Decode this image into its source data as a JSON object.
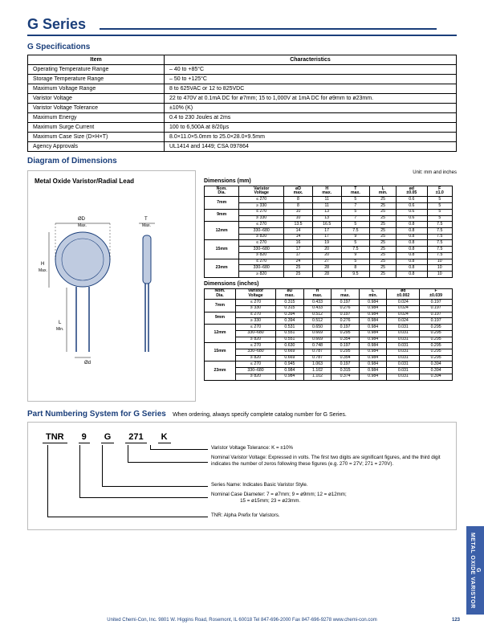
{
  "page_title": "G Series",
  "sections": {
    "spec_h": "G Specifications",
    "diag_h": "Diagram of Dimensions",
    "pn_h": "Part Numbering System for G Series",
    "pn_sub": "When ordering, always specify complete catalog number for G Series."
  },
  "spec_table": {
    "headers": [
      "Item",
      "Characteristics"
    ],
    "rows": [
      [
        "Operating Temperature Range",
        "– 40 to +85°C"
      ],
      [
        "Storage Temperature Range",
        "– 50 to +125°C"
      ],
      [
        "Maximum Voltage Range",
        "8 to 625VAC or 12 to 825VDC"
      ],
      [
        "Varistor Voltage",
        "22 to 470V at 0.1mA DC for ø7mm; 15 to 1,000V at 1mA DC for ø9mm to ø23mm."
      ],
      [
        "Varistor Voltage Tolerance",
        "±10% (K)"
      ],
      [
        "Maximum Energy",
        "0.4 to 230 Joules at 2ms"
      ],
      [
        "Maximum Surge Current",
        "100 to 6,500A at 8/20µs"
      ],
      [
        "Maximum Case Size (D×H×T)",
        "8.0×11.0×5.0mm to 25.0×28.0×9.5mm"
      ],
      [
        "Agency Approvals",
        "UL1414 and 1449; CSA 097864"
      ]
    ]
  },
  "diagram": {
    "box_title": "Metal Oxide Varistor/Radial Lead",
    "unit_note": "Unit: mm and inches",
    "dim_mm_title": "Dimensions (mm)",
    "dim_in_title": "Dimensions (inches)",
    "dim_headers": [
      "Nom.\nDia.",
      "Varistor\nVoltage",
      "øD\nmax.",
      "H\nmax.",
      "T\nmax.",
      "L\nmin.",
      "ød\n±0.05",
      "F\n±1.0"
    ],
    "dim_headers_in": [
      "Nom.\nDia.",
      "Varistor\nVoltage",
      "øD\nmax.",
      "H\nmax.",
      "T\nmax.",
      "L\nmin.",
      "ød\n±0.002",
      "F\n±0.039"
    ],
    "dim_mm_rows": [
      [
        "7mm",
        "≤ 270",
        "8",
        "11",
        "5",
        "25",
        "0.6",
        "5"
      ],
      [
        "",
        "≥ 330",
        "8",
        "11",
        "7",
        "25",
        "0.6",
        "5"
      ],
      [
        "9mm",
        "≤ 270",
        "10",
        "13",
        "5",
        "25",
        "0.6",
        "5"
      ],
      [
        "",
        "≥ 330",
        "10",
        "13",
        "7",
        "25",
        "0.6",
        "5"
      ],
      [
        "12mm",
        "≤ 270",
        "13.5",
        "16.5",
        "5",
        "25",
        "0.8",
        "7.5"
      ],
      [
        "",
        "330–680",
        "14",
        "17",
        "7.5",
        "25",
        "0.8",
        "7.5"
      ],
      [
        "",
        "≥ 820",
        "14",
        "17",
        "9",
        "25",
        "0.8",
        "7.5"
      ],
      [
        "15mm",
        "≤ 270",
        "16",
        "19",
        "5",
        "25",
        "0.8",
        "7.5"
      ],
      [
        "",
        "330–680",
        "17",
        "20",
        "7.5",
        "25",
        "0.8",
        "7.5"
      ],
      [
        "",
        "≥ 820",
        "17",
        "20",
        "9",
        "25",
        "0.8",
        "7.5"
      ],
      [
        "23mm",
        "≤ 270",
        "24",
        "27",
        "5",
        "25",
        "0.8",
        "10"
      ],
      [
        "",
        "330–680",
        "25",
        "28",
        "8",
        "25",
        "0.8",
        "10"
      ],
      [
        "",
        "≥ 820",
        "25",
        "28",
        "9.5",
        "25",
        "0.8",
        "10"
      ]
    ],
    "dim_in_rows": [
      [
        "7mm",
        "≤ 270",
        "0.315",
        "0.433",
        "0.197",
        "0.984",
        "0.024",
        "0.197"
      ],
      [
        "",
        "≥ 330",
        "0.315",
        "0.433",
        "0.276",
        "0.984",
        "0.024",
        "0.197"
      ],
      [
        "9mm",
        "≤ 270",
        "0.394",
        "0.512",
        "0.197",
        "0.984",
        "0.024",
        "0.197"
      ],
      [
        "",
        "≥ 330",
        "0.394",
        "0.512",
        "0.276",
        "0.984",
        "0.024",
        "0.197"
      ],
      [
        "12mm",
        "≤ 270",
        "0.531",
        "0.650",
        "0.197",
        "0.984",
        "0.031",
        "0.295"
      ],
      [
        "",
        "330–680",
        "0.551",
        "0.669",
        "0.295",
        "0.984",
        "0.031",
        "0.295"
      ],
      [
        "",
        "≥ 820",
        "0.551",
        "0.669",
        "0.354",
        "0.984",
        "0.031",
        "0.295"
      ],
      [
        "15mm",
        "≤ 270",
        "0.630",
        "0.748",
        "0.197",
        "0.984",
        "0.031",
        "0.295"
      ],
      [
        "",
        "330–680",
        "0.669",
        "0.787",
        "0.295",
        "0.984",
        "0.031",
        "0.295"
      ],
      [
        "",
        "≥ 820",
        "0.669",
        "0.787",
        "0.354",
        "0.984",
        "0.031",
        "0.295"
      ],
      [
        "23mm",
        "≤ 270",
        "0.945",
        "1.063",
        "0.197",
        "0.984",
        "0.031",
        "0.394"
      ],
      [
        "",
        "330–680",
        "0.984",
        "1.102",
        "0.315",
        "0.984",
        "0.031",
        "0.394"
      ],
      [
        "",
        "≥ 820",
        "0.984",
        "1.102",
        "0.374",
        "0.984",
        "0.031",
        "0.394"
      ]
    ]
  },
  "part_numbering": {
    "codes": [
      "TNR",
      "9",
      "G",
      "271",
      "K"
    ],
    "lines": [
      "Varistor Voltage Tolerance: K = ±10%",
      "Nominal Varistor Voltage: Expressed in volts. The first two digits are significant figures, and the third digit indicates the number of zeros following these figures (e.g. 270 = 27V; 271 = 270V).",
      "Series Name: Indicates Basic Varistor Style.",
      "Nominal Case Diameter: 7 = ø7mm; 9 = ø9mm; 12 = ø12mm;\n                     15 = ø15mm; 23 = ø23mm.",
      "TNR: Alpha Prefix for Varistors."
    ]
  },
  "sidebar": {
    "line1": "G",
    "line2": "METAL OXIDE VARISTOR"
  },
  "footer": {
    "text": "United Chemi-Con, Inc.  9801 W. Higgins Road, Rosemont, IL 60018  Tel 847-696-2000  Fax 847-696-9278  www.chemi-con.com",
    "pagenum": "123"
  },
  "colors": {
    "brand": "#1a3e7a",
    "sidebar": "#3b5fa8"
  },
  "svg_labels": {
    "od": "ØD",
    "t": "T",
    "h": "H",
    "l": "L",
    "sd": "Ød",
    "max": "Max.",
    "min": "Min."
  }
}
